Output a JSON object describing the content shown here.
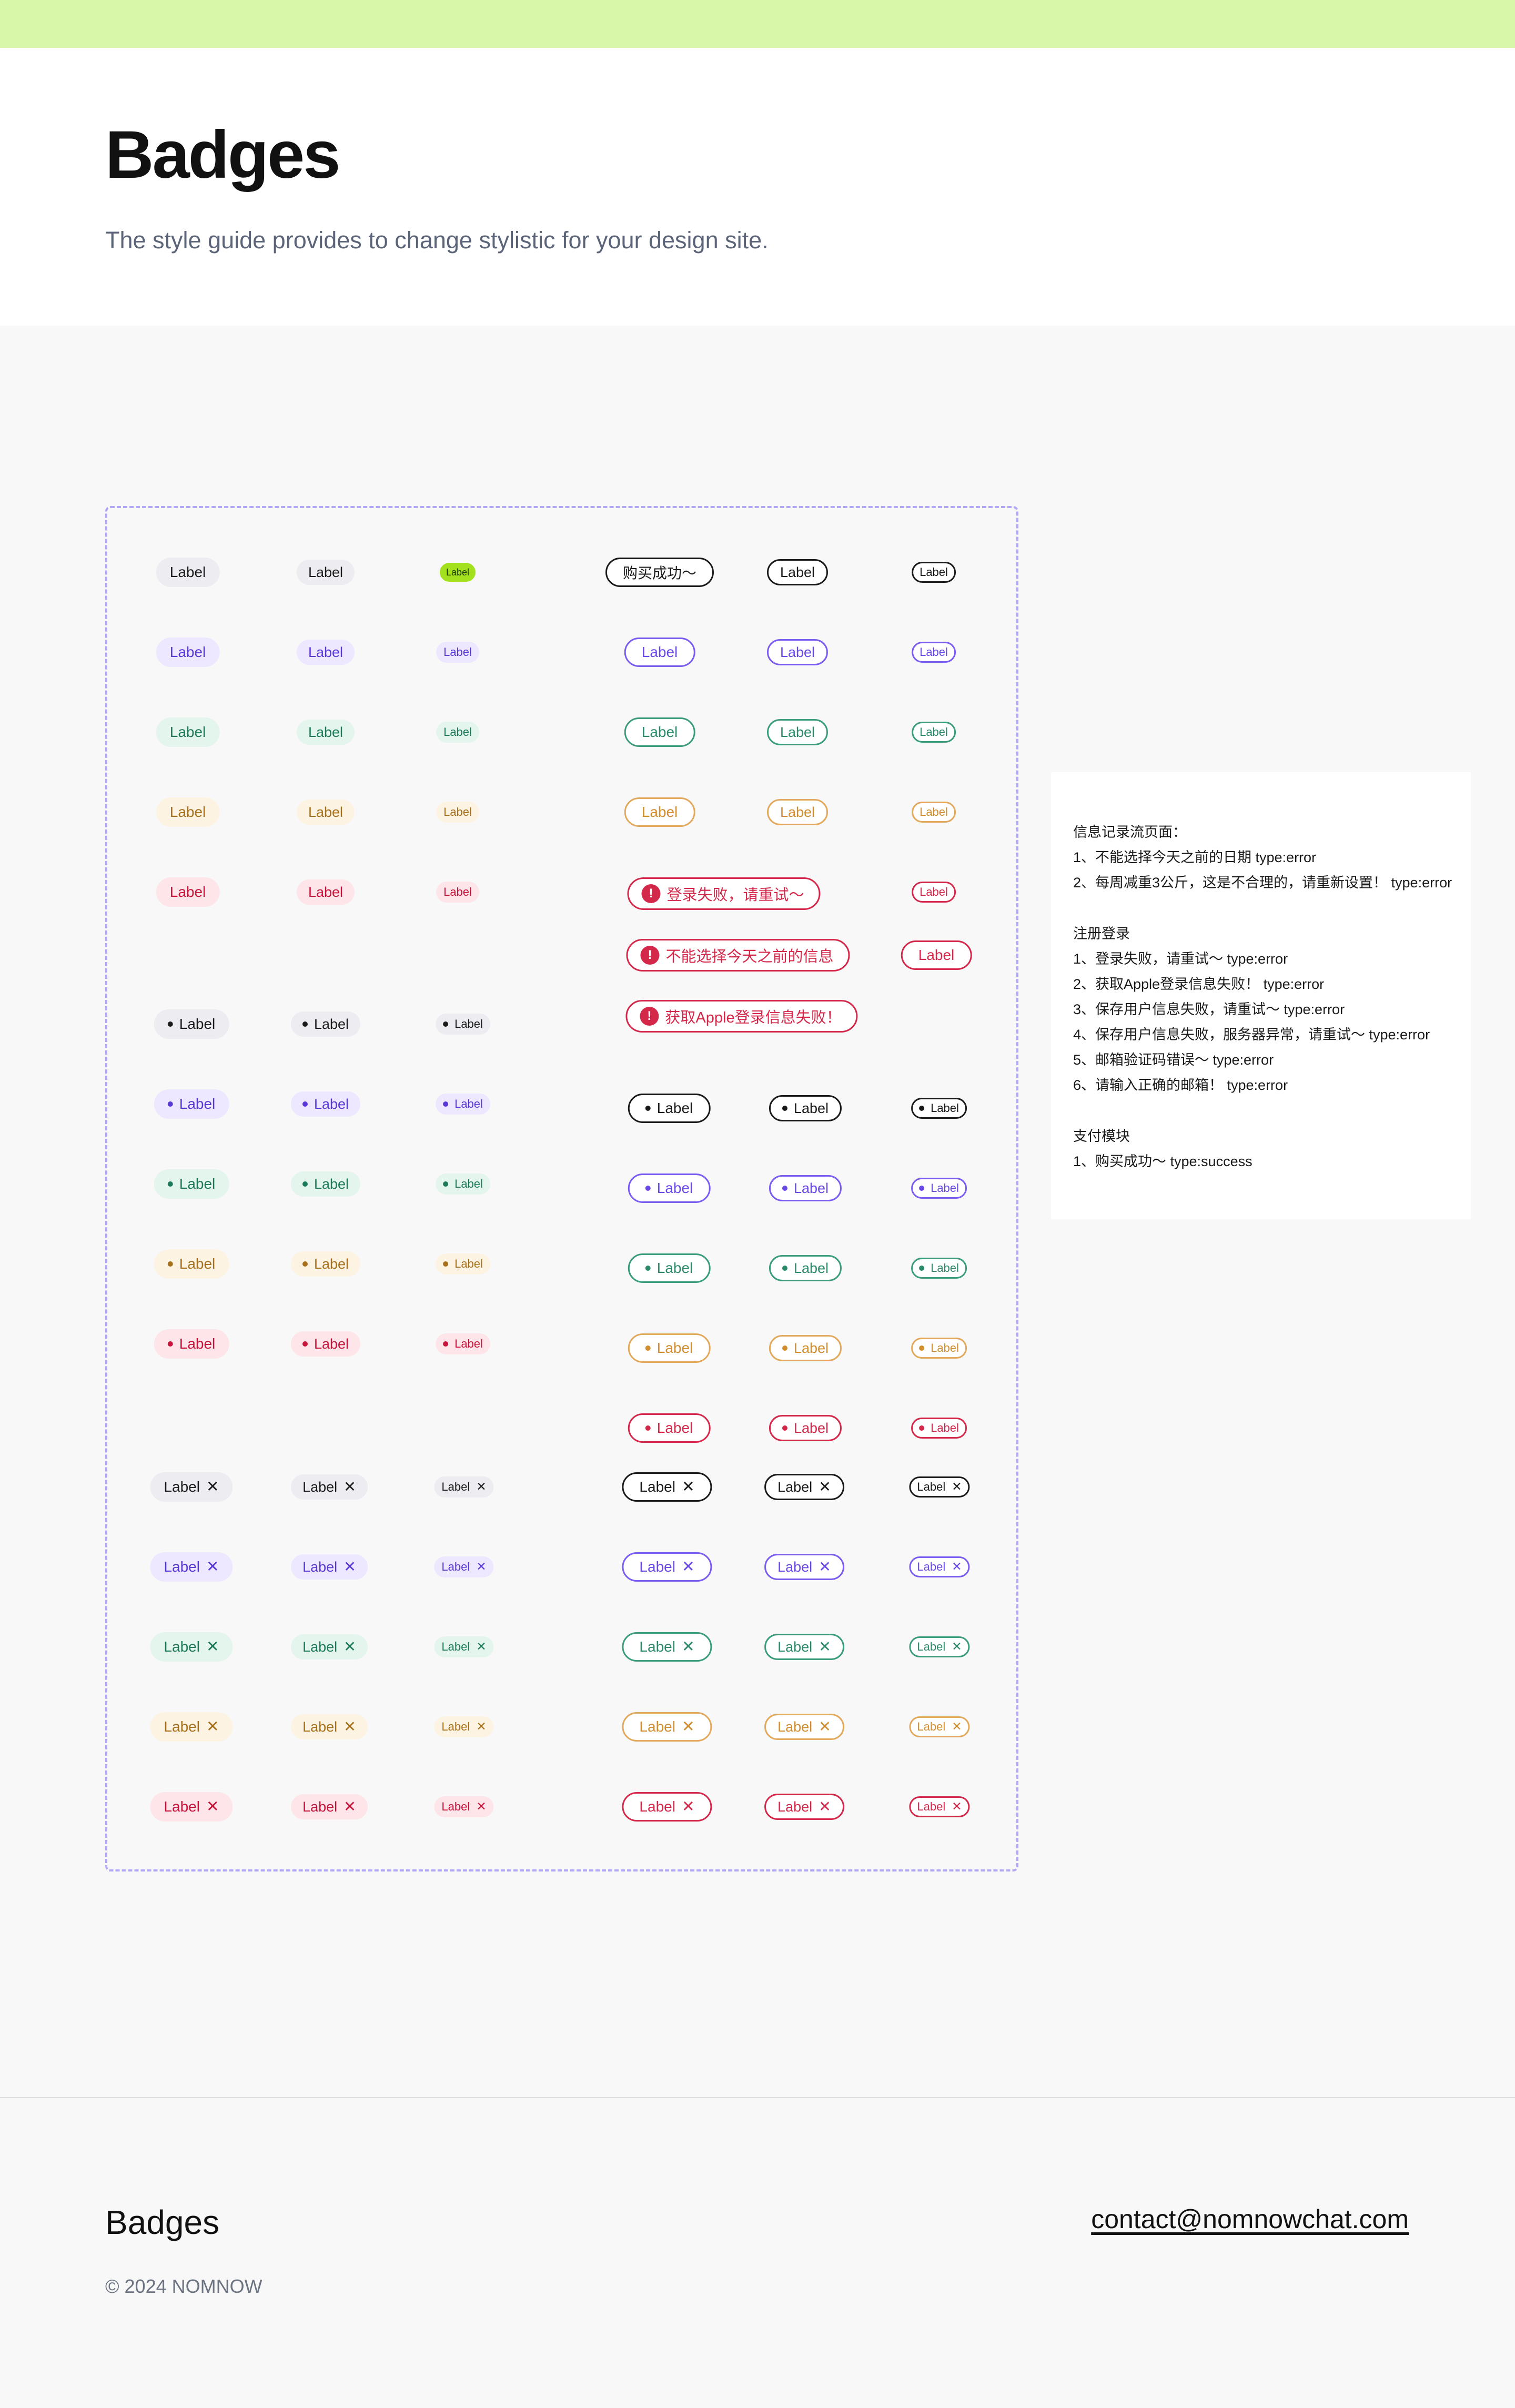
{
  "header": {
    "title": "Badges",
    "subtitle": "The style guide provides to change stylistic for your design site."
  },
  "colors": {
    "accent_bar": "#d9f7a9",
    "gray": "#1c1c1c",
    "purple": "#6a49e6",
    "green": "#2b8a6a",
    "orange": "#d28d2e",
    "red": "#d4284b",
    "lime": "#a3e01e"
  },
  "badge_label": "Label",
  "close_glyph": "✕",
  "alert_glyph": "!",
  "special_badges": {
    "purchase_success": "购买成功～",
    "login_failed": "登录失败，请重试～",
    "date_invalid": "不能选择今天之前的信息",
    "apple_login_failed": "获取Apple登录信息失败！"
  },
  "notes": {
    "lines": [
      "信息记录流页面：",
      "1、不能选择今天之前的日期 type:error",
      "2、每周减重3公斤，这是不合理的，请重新设置！  type:error",
      "注册登录",
      "1、登录失败，请重试～ type:error",
      "2、获取Apple登录信息失败！  type:error",
      "3、保存用户信息失败，请重试～ type:error",
      "4、保存用户信息失败，服务器异常，请重试～ type:error",
      "5、邮箱验证码错误～  type:error",
      "6、请输入正确的邮箱！   type:error",
      "支付模块",
      "1、购买成功～   type:success"
    ]
  },
  "footer": {
    "title": "Badges",
    "copyright": "© 2024 NOMNOW",
    "email": "contact@nomnowchat.com"
  }
}
